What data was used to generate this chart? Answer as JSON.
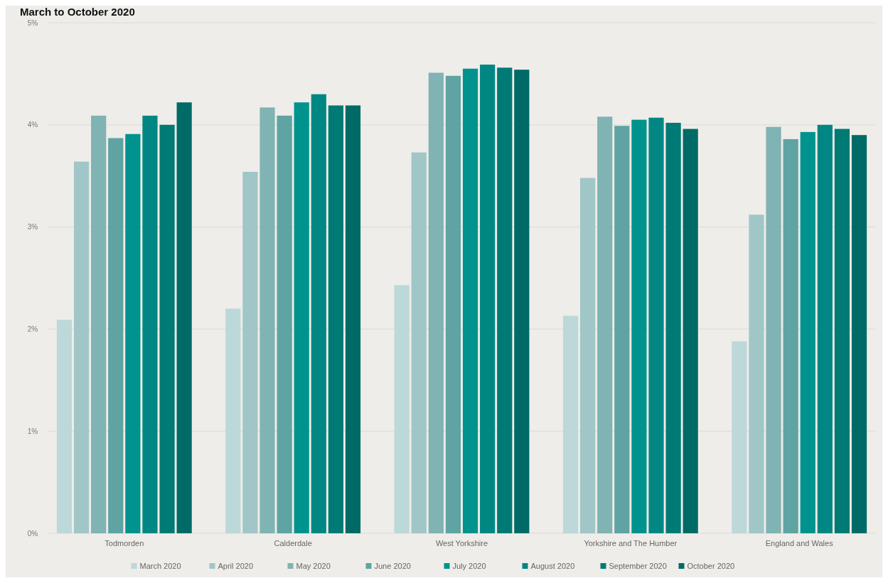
{
  "chart_data": {
    "type": "bar",
    "title": "March to October 2020",
    "categories": [
      "Todmorden",
      "Calderdale",
      "West Yorkshire",
      "Yorkshire and The Humber",
      "England and Wales"
    ],
    "series": [
      {
        "name": "March 2020",
        "color": "#bcd8d9",
        "values": [
          2.09,
          2.2,
          2.43,
          2.13,
          1.88
        ]
      },
      {
        "name": "April 2020",
        "color": "#a0c6c7",
        "values": [
          3.64,
          3.54,
          3.73,
          3.48,
          3.12
        ]
      },
      {
        "name": "May 2020",
        "color": "#80b3b3",
        "values": [
          4.09,
          4.17,
          4.51,
          4.08,
          3.98
        ]
      },
      {
        "name": "June 2020",
        "color": "#5fa3a3",
        "values": [
          3.87,
          4.09,
          4.48,
          3.99,
          3.86
        ]
      },
      {
        "name": "July 2020",
        "color": "#00938e",
        "values": [
          3.91,
          4.22,
          4.55,
          4.05,
          3.93
        ]
      },
      {
        "name": "August 2020",
        "color": "#008784",
        "values": [
          4.09,
          4.3,
          4.59,
          4.07,
          4.0
        ]
      },
      {
        "name": "September 2020",
        "color": "#007a74",
        "values": [
          4.0,
          4.19,
          4.56,
          4.02,
          3.96
        ]
      },
      {
        "name": "October 2020",
        "color": "#006b66",
        "values": [
          4.22,
          4.19,
          4.54,
          3.96,
          3.9
        ]
      }
    ],
    "ylim": [
      0,
      5
    ],
    "yticks": [
      {
        "value": 0,
        "label": "0%"
      },
      {
        "value": 1,
        "label": "1%"
      },
      {
        "value": 2,
        "label": "2%"
      },
      {
        "value": 3,
        "label": "3%"
      },
      {
        "value": 4,
        "label": "4%"
      },
      {
        "value": 5,
        "label": "5%"
      }
    ],
    "grid": "y",
    "legend": "bottom"
  }
}
